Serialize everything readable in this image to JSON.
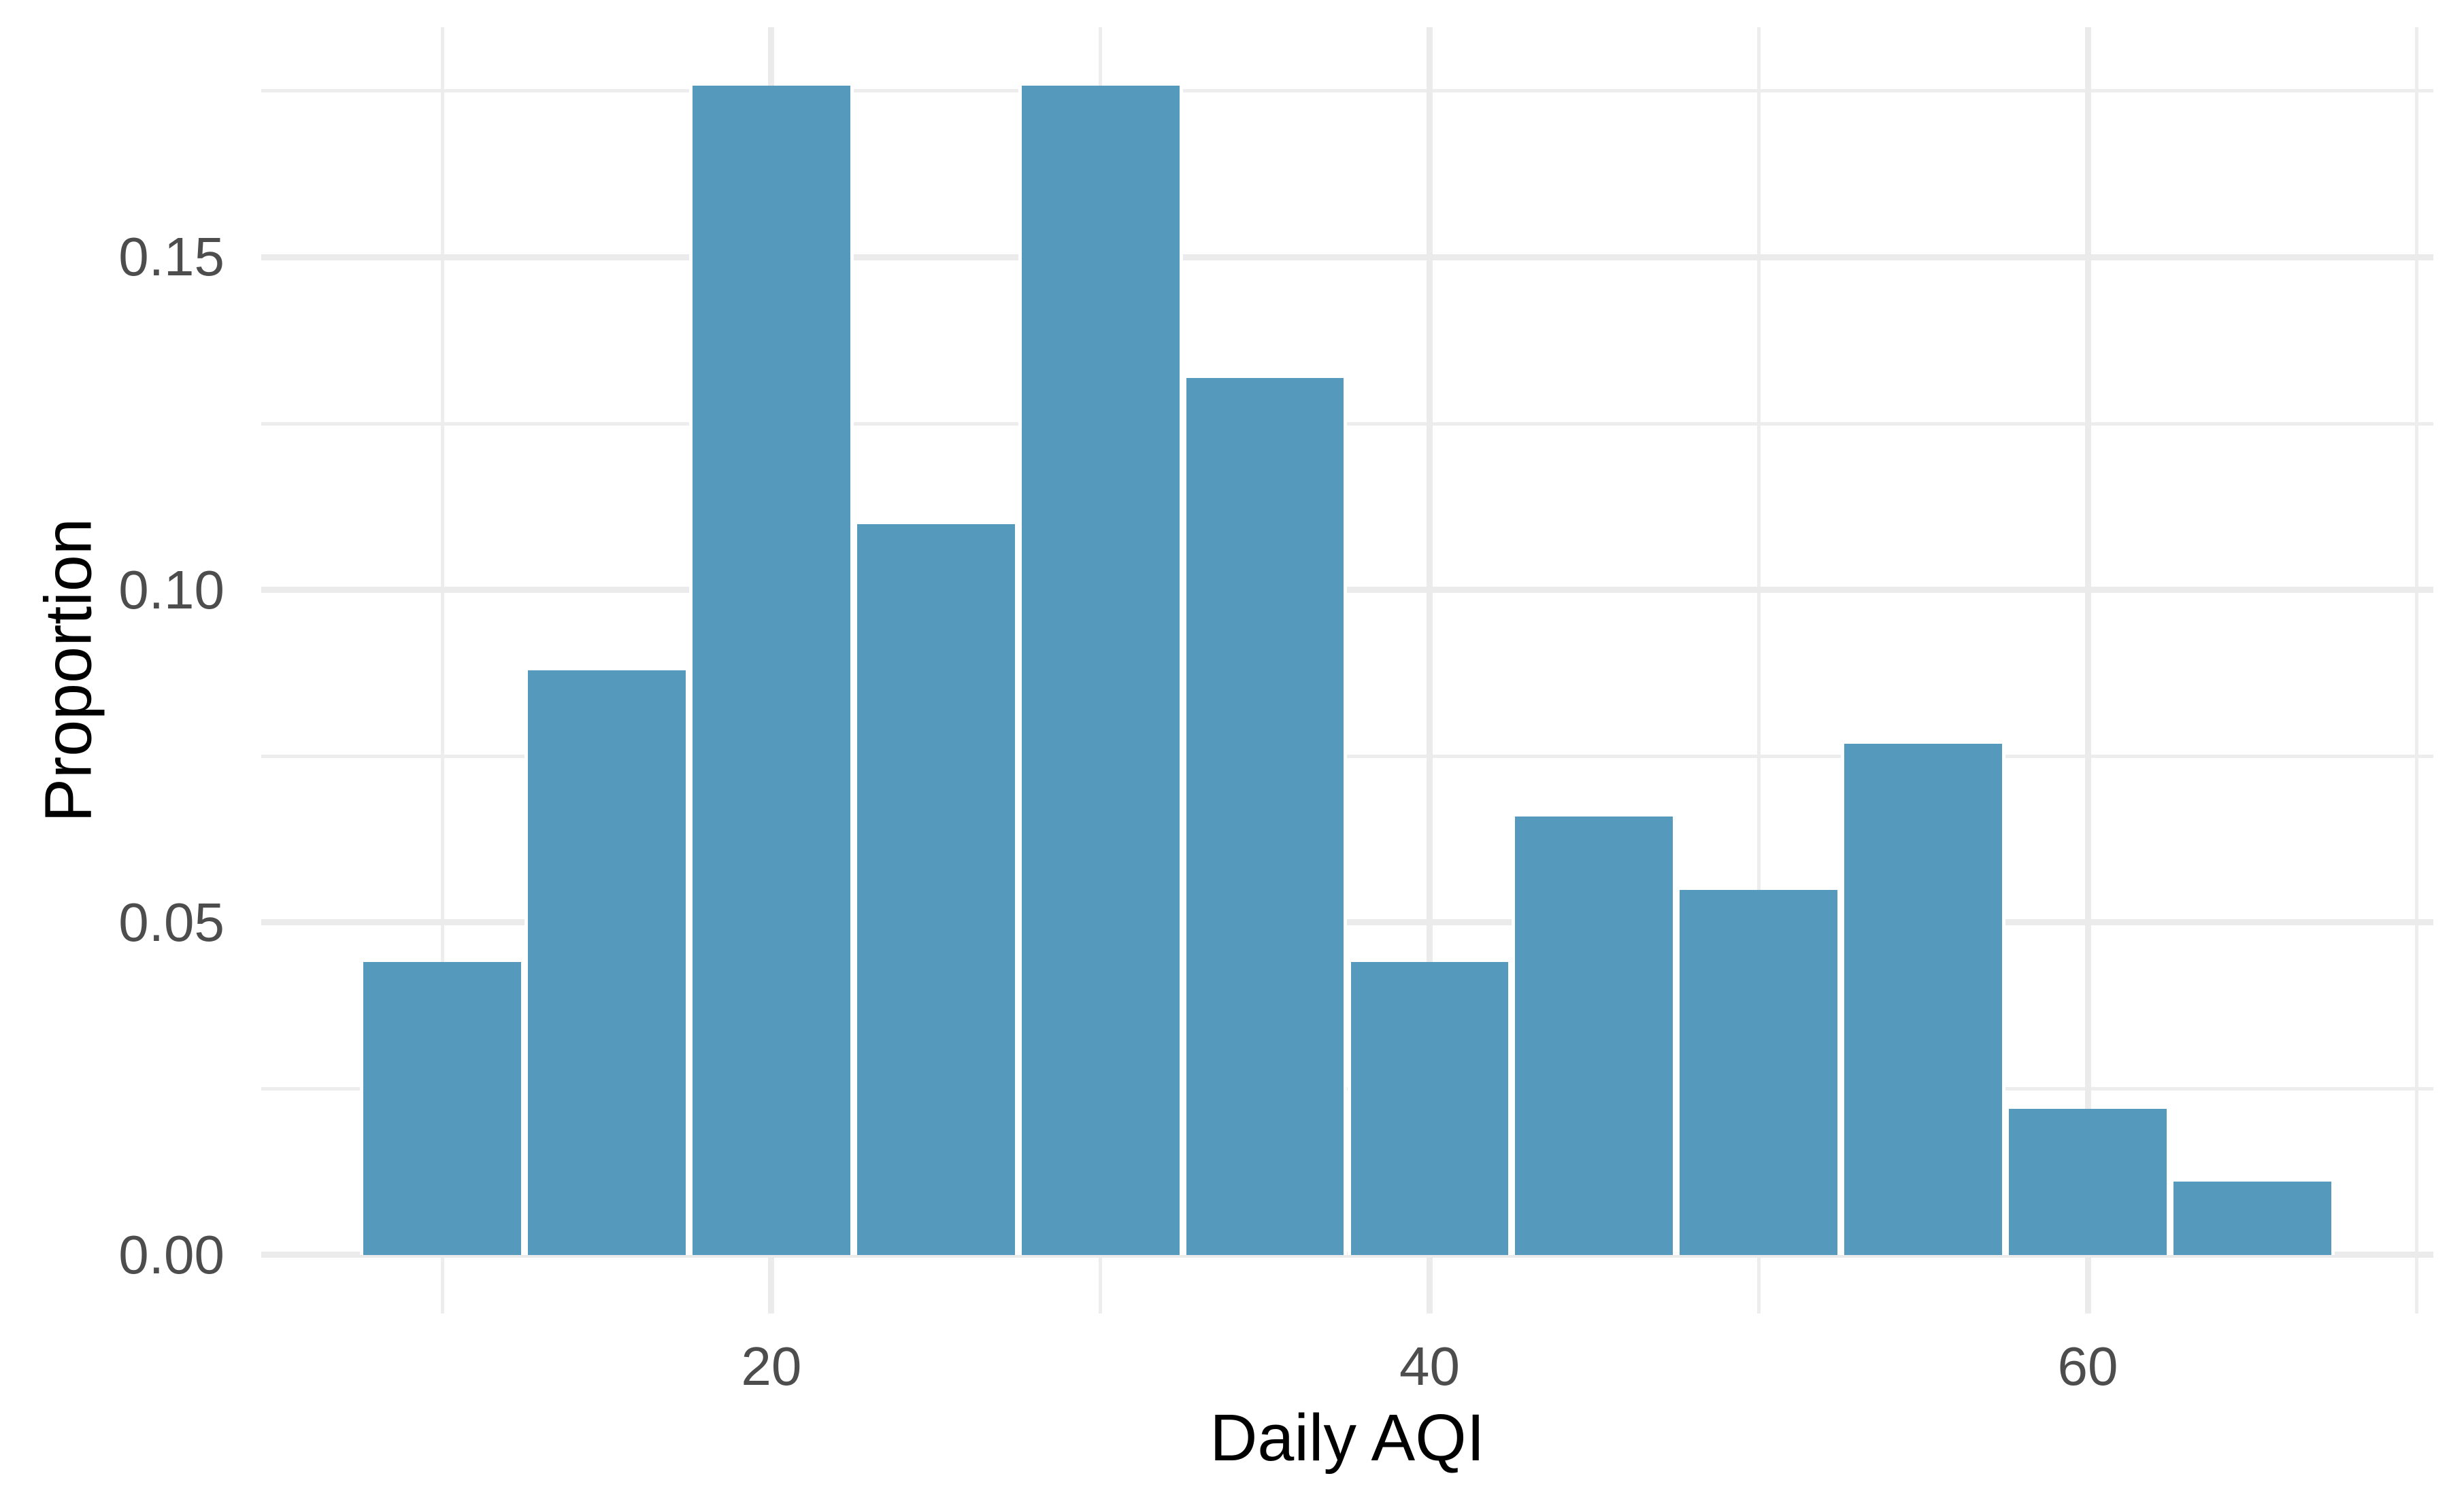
{
  "chart_data": {
    "type": "bar",
    "subtype": "histogram",
    "title": "",
    "xlabel": "Daily AQI",
    "ylabel": "Proportion",
    "bin_width": 5,
    "bin_edges": [
      7.5,
      12.5,
      17.5,
      22.5,
      27.5,
      32.5,
      37.5,
      42.5,
      47.5,
      52.5,
      57.5,
      62.5,
      67.5
    ],
    "bin_centers": [
      10,
      15,
      20,
      25,
      30,
      35,
      40,
      45,
      50,
      55,
      60,
      65
    ],
    "values": [
      0.044,
      0.0879,
      0.1758,
      0.1099,
      0.1758,
      0.1319,
      0.044,
      0.0659,
      0.0549,
      0.0769,
      0.022,
      0.011
    ],
    "x_ticks": [
      {
        "value": 20,
        "label": "20"
      },
      {
        "value": 40,
        "label": "40"
      },
      {
        "value": 60,
        "label": "60"
      }
    ],
    "y_ticks": [
      {
        "value": 0.0,
        "label": "0.00"
      },
      {
        "value": 0.05,
        "label": "0.05"
      },
      {
        "value": 0.1,
        "label": "0.10"
      },
      {
        "value": 0.15,
        "label": "0.15"
      }
    ],
    "x_minor_gridlines": [
      10,
      30,
      50,
      70
    ],
    "y_minor_gridlines": [
      0.025,
      0.075,
      0.125,
      0.175
    ],
    "xlim": [
      4.5,
      70.5
    ],
    "ylim": [
      -0.0088,
      0.1846
    ],
    "grid": "major and minor, no axis lines, no tick marks",
    "legend_position": "none",
    "colors": {
      "bar_fill": "#5599BD",
      "bar_outline": "#FFFFFF",
      "gridline": "#EBEBEB",
      "axis_text": "#4D4D4D",
      "axis_title": "#000000",
      "background": "#FFFFFF"
    }
  }
}
